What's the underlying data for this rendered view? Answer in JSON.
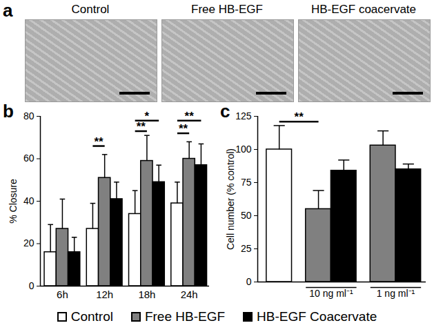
{
  "images": {
    "panel_label": "a",
    "titles": [
      "Control",
      "Free HB-EGF",
      "HB-EGF coacervate"
    ]
  },
  "chart_data": [
    {
      "type": "bar",
      "panel_label": "b",
      "ylabel": "% Closure",
      "categories": [
        "6h",
        "12h",
        "18h",
        "24h"
      ],
      "series": [
        {
          "name": "Control",
          "color": "#ffffff",
          "values": [
            16,
            27,
            34,
            39
          ],
          "errors": [
            13,
            12,
            11,
            10
          ]
        },
        {
          "name": "Free HB-EGF",
          "color": "#808080",
          "values": [
            27,
            51,
            59,
            60
          ],
          "errors": [
            14,
            11,
            12,
            8
          ]
        },
        {
          "name": "HB-EGF Coacervate",
          "color": "#000000",
          "values": [
            16,
            41,
            49,
            57
          ],
          "errors": [
            7,
            8,
            8,
            10
          ]
        }
      ],
      "ylim": [
        0,
        80
      ],
      "yticks": [
        0,
        20,
        40,
        60,
        80
      ],
      "annotations": [
        {
          "text": "**",
          "from": [
            1,
            "Control"
          ],
          "to": [
            1,
            "Free HB-EGF"
          ],
          "y": 66
        },
        {
          "text": "**",
          "from": [
            2,
            "Control"
          ],
          "to": [
            2,
            "Free HB-EGF"
          ],
          "y": 73
        },
        {
          "text": "*",
          "from": [
            2,
            "Control"
          ],
          "to": [
            2,
            "HB-EGF Coacervate"
          ],
          "y": 78
        },
        {
          "text": "**",
          "from": [
            3,
            "Control"
          ],
          "to": [
            3,
            "Free HB-EGF"
          ],
          "y": 72
        },
        {
          "text": "**",
          "from": [
            3,
            "Control"
          ],
          "to": [
            3,
            "HB-EGF Coacervate"
          ],
          "y": 78
        }
      ],
      "legend": "bottom"
    },
    {
      "type": "bar",
      "panel_label": "c",
      "ylabel": "Cell number (% control)",
      "categories": [
        null,
        "10 ng ml⁻¹",
        "1 ng ml⁻¹"
      ],
      "series": [
        {
          "name": "Control",
          "color": "#ffffff",
          "values": [
            100,
            null,
            null
          ],
          "errors": [
            18,
            null,
            null
          ]
        },
        {
          "name": "Free HB-EGF",
          "color": "#808080",
          "values": [
            null,
            55,
            103
          ],
          "errors": [
            null,
            14,
            11
          ]
        },
        {
          "name": "HB-EGF Coacervate",
          "color": "#000000",
          "values": [
            null,
            84,
            85
          ],
          "errors": [
            null,
            8,
            4
          ]
        }
      ],
      "ylim": [
        0,
        125
      ],
      "yticks": [
        0,
        25,
        50,
        75,
        100,
        125
      ],
      "annotations": [
        {
          "text": "**",
          "from": [
            0,
            "Control"
          ],
          "to": [
            1,
            "Free HB-EGF"
          ],
          "y": 121
        }
      ]
    }
  ]
}
